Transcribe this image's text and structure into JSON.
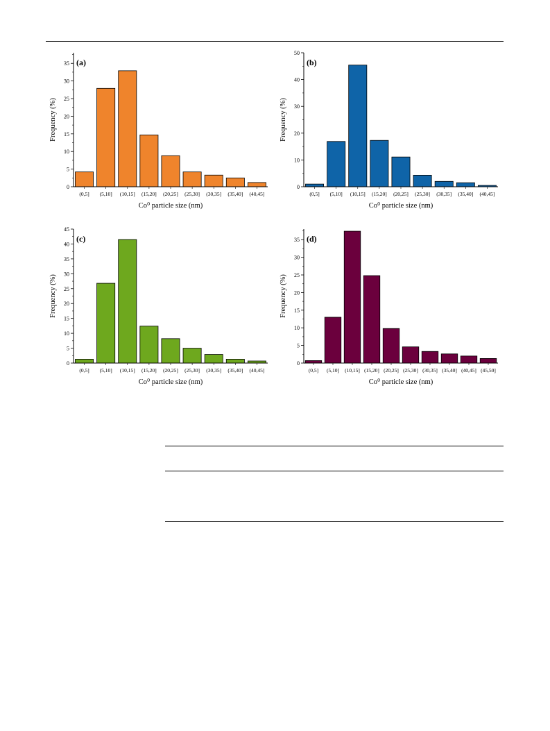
{
  "chart_data": [
    {
      "type": "bar",
      "panel_label": "(a)",
      "color": "#EF842C",
      "categories": [
        "(0,5]",
        "(5,10]",
        "(10,15]",
        "(15,20]",
        "(20,25]",
        "(25,30]",
        "(30,35]",
        "(35,40]",
        "(40,45]"
      ],
      "values": [
        4.2,
        27.9,
        32.9,
        14.7,
        8.8,
        4.2,
        3.3,
        2.5,
        1.2
      ],
      "xlabel": "Co⁰ particle size (nm)",
      "ylabel": "Frequency (%)",
      "ylim": [
        0,
        38
      ],
      "yticks": [
        0,
        5,
        10,
        15,
        20,
        25,
        30,
        35
      ],
      "grid": false
    },
    {
      "type": "bar",
      "panel_label": "(b)",
      "color": "#0F64A8",
      "categories": [
        "(0,5]",
        "(5,10]",
        "(10,15]",
        "(15,20]",
        "(20,25]",
        "(25,30]",
        "(30,35]",
        "(35,40]",
        "(40,45]"
      ],
      "values": [
        1.0,
        16.9,
        45.4,
        17.3,
        11.1,
        4.3,
        2.0,
        1.5,
        0.5
      ],
      "xlabel": "Co⁰ particle size (nm)",
      "ylabel": "Frequency (%)",
      "ylim": [
        0,
        50
      ],
      "yticks": [
        0,
        10,
        20,
        30,
        40,
        50
      ],
      "grid": false
    },
    {
      "type": "bar",
      "panel_label": "(c)",
      "color": "#6EA81E",
      "categories": [
        "(0,5]",
        "(5,10]",
        "(10,15]",
        "(15,20]",
        "(20,25]",
        "(25,30]",
        "(30,35]",
        "(35,40]",
        "(40,45]"
      ],
      "values": [
        1.3,
        26.8,
        41.5,
        12.4,
        8.2,
        5.0,
        2.9,
        1.3,
        0.7
      ],
      "xlabel": "Co⁰ particle size (nm)",
      "ylabel": "Frequency (%)",
      "ylim": [
        0,
        45
      ],
      "yticks": [
        0,
        5,
        10,
        15,
        20,
        25,
        30,
        35,
        40,
        45
      ],
      "grid": false
    },
    {
      "type": "bar",
      "panel_label": "(d)",
      "color": "#6B003D",
      "categories": [
        "(0,5]",
        "(5,10]",
        "(10,15]",
        "(15,20]",
        "(20,25]",
        "(25,30]",
        "(30,35]",
        "(35,40]",
        "(40,45]",
        "(45,50]"
      ],
      "values": [
        0.7,
        13.0,
        37.4,
        24.8,
        9.8,
        4.6,
        3.3,
        2.6,
        2.0,
        1.3
      ],
      "xlabel": "Co⁰ particle size (nm)",
      "ylabel": "Frequency (%)",
      "ylim": [
        0,
        38
      ],
      "yticks": [
        0,
        5,
        10,
        15,
        20,
        25,
        30,
        35
      ],
      "grid": false
    }
  ]
}
